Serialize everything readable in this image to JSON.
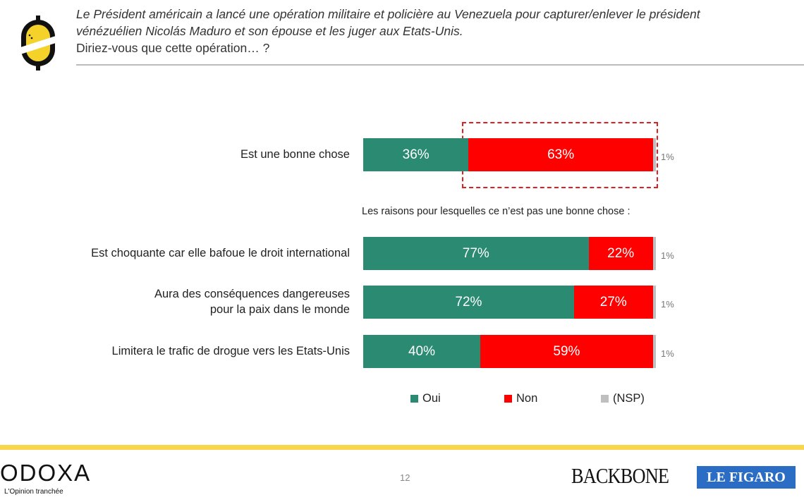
{
  "question": {
    "line1": "Le Président américain a lancé une opération militaire et policière au Venezuela pour capturer/enlever le président",
    "line2": "vénézuélien Nicolás Maduro et son épouse et les juger aux Etats-Unis.",
    "line3": "Diriez-vous que cette opération… ?"
  },
  "subtitle": "Les raisons pour lesquelles ce n’est pas une bonne chose :",
  "chart_data": {
    "type": "bar",
    "orientation": "horizontal",
    "stacked": true,
    "categories": [
      "Est une bonne chose",
      "Est choquante car elle bafoue le droit international",
      "Aura des conséquences dangereuses pour la paix dans le monde",
      "Limitera le trafic de drogue vers les Etats-Unis"
    ],
    "category_lines": [
      [
        "Est une bonne chose"
      ],
      [
        "Est choquante car elle bafoue le droit international"
      ],
      [
        "Aura des conséquences dangereuses",
        "pour la paix dans le monde"
      ],
      [
        "Limitera le trafic de drogue vers les Etats-Unis"
      ]
    ],
    "series": [
      {
        "name": "Oui",
        "color": "#2a8a72",
        "values": [
          36,
          77,
          72,
          40
        ],
        "labels": [
          "36%",
          "77%",
          "72%",
          "40%"
        ]
      },
      {
        "name": "Non",
        "color": "#ff0000",
        "values": [
          63,
          22,
          27,
          59
        ],
        "labels": [
          "63%",
          "22%",
          "27%",
          "59%"
        ]
      },
      {
        "name": "(NSP)",
        "color": "#bfbfbf",
        "values": [
          1,
          1,
          1,
          1
        ],
        "labels": [
          "1%",
          "1%",
          "1%",
          "1%"
        ]
      }
    ],
    "unit": "%",
    "legend": "bottom",
    "highlight": "Non — Est une bonne chose"
  },
  "footer": {
    "brand": "ODOXA",
    "tagline": "L'Opinion tranchée",
    "page": "12",
    "partner1": "BACKBONE",
    "partner2": "LE FIGARO"
  }
}
